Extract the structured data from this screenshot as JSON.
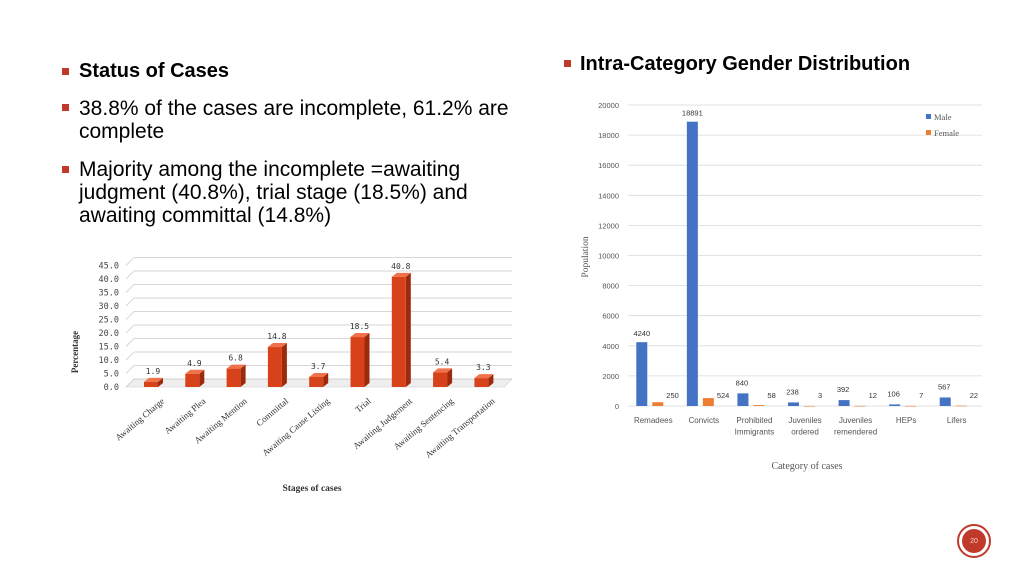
{
  "left_text": {
    "bullet1": "Status of Cases",
    "bullet2": "38.8% of the cases are incomplete, 61.2% are complete",
    "bullet3": "Majority among the incomplete =awaiting judgment (40.8%), trial stage (18.5%) and awaiting committal (14.8%)"
  },
  "right_heading": "Intra-Category Gender Distribution",
  "page_number": "20",
  "colors": {
    "accent": "#c0392b",
    "bar3d": "#e24a1b",
    "male": "#4472c4",
    "female": "#ed7d31"
  },
  "chart_data": [
    {
      "type": "bar",
      "style": "3d",
      "categories": [
        "Awaiting Charge",
        "Awaiting Plea",
        "Awaiting Mention",
        "Committal",
        "Awaiting Cause Listing",
        "Trial",
        "Awaiting Judgement",
        "Awaiting Sentencing",
        "Awaiting Transportation"
      ],
      "values": [
        1.9,
        4.9,
        6.8,
        14.8,
        3.7,
        18.5,
        40.8,
        5.4,
        3.3
      ],
      "data_labels": [
        "1.9",
        "4.9",
        "6.8",
        "14.8",
        "3.7",
        "18.5",
        "40.8",
        "5.4",
        "3.3"
      ],
      "y_ticks": [
        "0.0",
        "5.0",
        "10.0",
        "15.0",
        "20.0",
        "25.0",
        "30.0",
        "35.0",
        "40.0",
        "45.0"
      ],
      "title": "",
      "xlabel": "Stages of cases",
      "ylabel": "Percentage",
      "ylim": [
        0,
        45
      ],
      "grid": true
    },
    {
      "type": "bar",
      "categories": [
        "Remadees",
        "Convicts",
        "Prohibited Immigrants",
        "Juveniles ordered",
        "Juveniles remendered",
        "HEPs",
        "Lifers"
      ],
      "categories_display": [
        [
          "Remadees"
        ],
        [
          "Convicts"
        ],
        [
          "Prohibited",
          "Immigrants"
        ],
        [
          "Juveniles",
          "ordered"
        ],
        [
          "Juveniles",
          "remendered"
        ],
        [
          "HEPs"
        ],
        [
          "Lifers"
        ]
      ],
      "series": [
        {
          "name": "Male",
          "values": [
            4240,
            18891,
            840,
            238,
            392,
            106,
            567
          ]
        },
        {
          "name": "Female",
          "values": [
            250,
            524,
            58,
            3,
            12,
            7,
            22
          ]
        }
      ],
      "y_ticks": [
        "0",
        "2000",
        "4000",
        "6000",
        "8000",
        "10000",
        "12000",
        "14000",
        "16000",
        "18000",
        "20000"
      ],
      "title": "",
      "xlabel": "Category of cases",
      "ylabel": "Population",
      "ylim": [
        0,
        20000
      ],
      "grid": true,
      "legend": "top-right"
    }
  ]
}
